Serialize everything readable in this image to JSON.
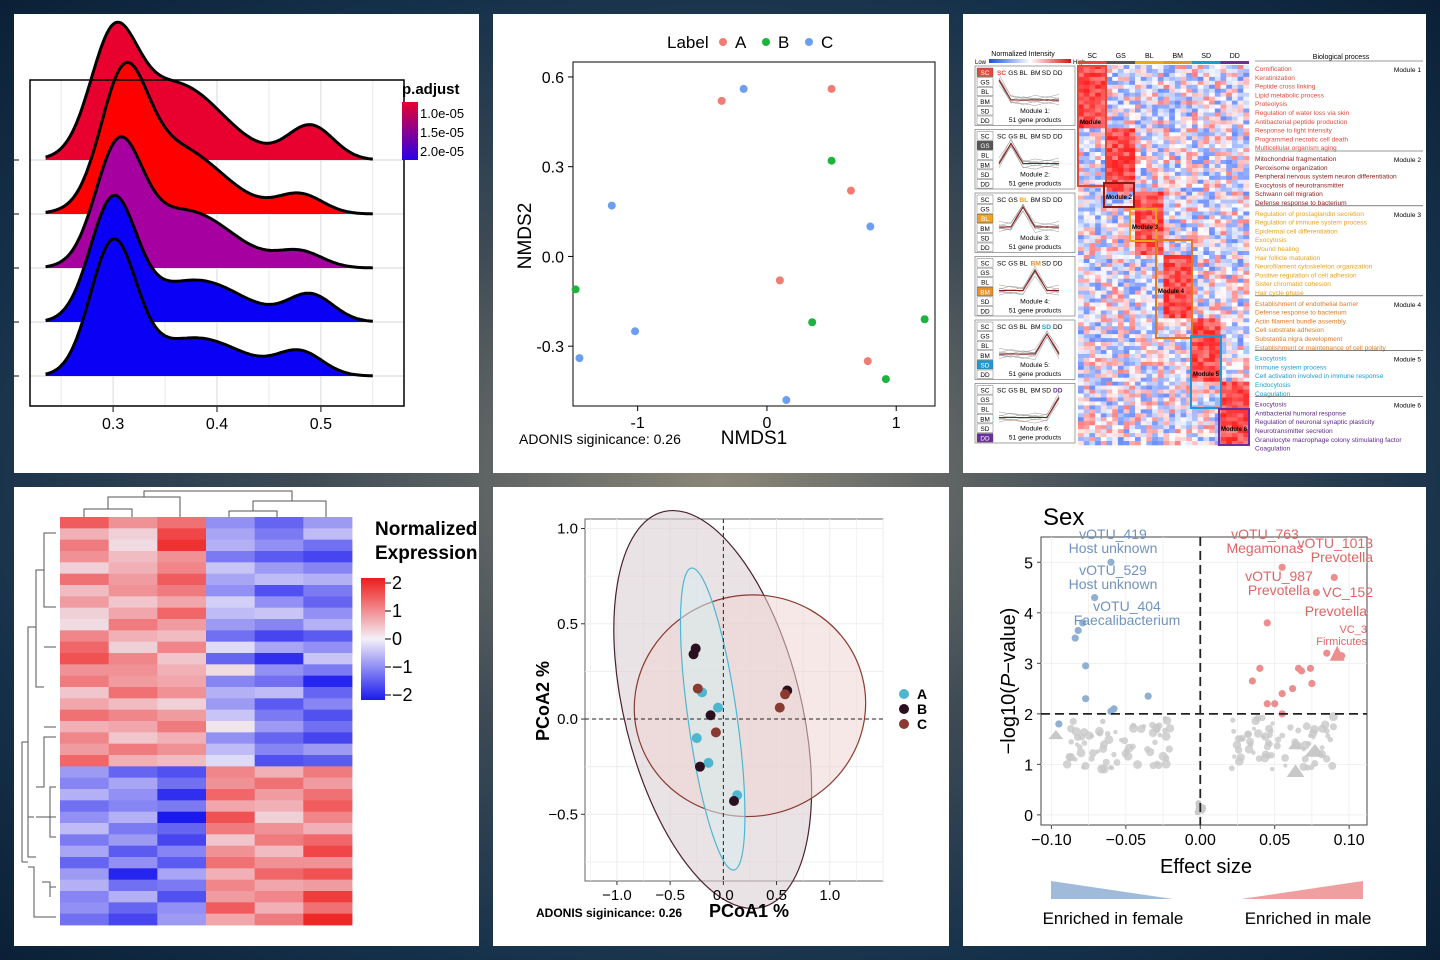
{
  "ridge": {
    "legend_title": "p.adjust",
    "legend_ticks": [
      "1.0e-05",
      "1.5e-05",
      "2.0e-05"
    ],
    "colors": [
      "#e8002e",
      "#ff0000",
      "#a600a0",
      "#0a00f5",
      "#0a00f5"
    ],
    "x_ticks": [
      "0.3",
      "0.4",
      "0.5"
    ]
  },
  "nmds": {
    "legend_title": "Label",
    "groups": [
      {
        "name": "A",
        "color": "#f07c74"
      },
      {
        "name": "B",
        "color": "#1db33c"
      },
      {
        "name": "C",
        "color": "#6c9ef0"
      }
    ],
    "xlabel": "NMDS1",
    "ylabel": "NMDS2",
    "x_ticks": [
      "-1",
      "0",
      "1"
    ],
    "y_ticks": [
      "0.6",
      "0.3",
      "0.0",
      "-0.3"
    ],
    "note": "ADONIS siginicance: 0.26"
  },
  "module_heatmap": {
    "legend_label": "Normalized Intensity",
    "legend_low": "Low",
    "legend_high": "High",
    "columns": [
      "SC",
      "GS",
      "BL",
      "BM",
      "SD",
      "DD"
    ],
    "column_colors": [
      "#e34a3d",
      "#555555",
      "#f0a41c",
      "#e8902a",
      "#1a9bd6",
      "#6a2ea0"
    ],
    "bp_header": "Biological process",
    "modules": [
      {
        "label": "Module 1",
        "name": "Module 1:",
        "count": "51 gene products",
        "color": "#e04a3a",
        "short": "Module",
        "terms": [
          "Cornification",
          "Keratinization",
          "Peptide cross linking",
          "Lipid metabolic process",
          "Proteolysis",
          "Regulation of water loss via skin",
          "Antibacterial peptide production",
          "Response to light intensity",
          "Programmed necrotic cell death",
          "Multicellular organism aging"
        ]
      },
      {
        "label": "Module 2",
        "name": "Module 2:",
        "count": "51 gene products",
        "color": "#8b1a1a",
        "short": "Module 2",
        "terms": [
          "Mitochondrial fragmentation",
          "Peroxisome organization",
          "Peripheral nervous system neuron differentiation",
          "Exocytosis of neurotransmitter",
          "Schwann cell migration",
          "Defense response to bacterium"
        ]
      },
      {
        "label": "Module 3",
        "name": "Module 3:",
        "count": "51 gene products",
        "color": "#e8a21c",
        "short": "Module 3",
        "terms": [
          "Regulation of prostaglandin secretion",
          "Regulation of immune system process",
          "Epidermal cell differentiation",
          "Exocytosis",
          "Wound healing",
          "Hair follicle maturation",
          "Neurofilament cytoskeleton organization",
          "Positive regulation of cell adhesion",
          "Sister chromatid cohesion",
          "Hair cycle phase"
        ]
      },
      {
        "label": "Module 4",
        "name": "Module 4:",
        "count": "51 gene products",
        "color": "#e07a22",
        "short": "Module 4",
        "terms": [
          "Establishment of endothelial barrier",
          "Defense response to bacterium",
          "Actin filament bundle assembly",
          "Cell substrate adhesion",
          "Substantia nigra development",
          "Establishment or maintenance of cell polarity"
        ]
      },
      {
        "label": "Module 5",
        "name": "Module 5:",
        "count": "51 gene products",
        "color": "#1a9bd6",
        "short": "Module 5",
        "terms": [
          "Exocytosis",
          "Immune system process",
          "Cell activation involved in immune response",
          "Endocytosis",
          "Coagulation"
        ]
      },
      {
        "label": "Module 6",
        "name": "Module 6:",
        "count": "51 gene products",
        "color": "#6a2ea0",
        "short": "Module 6",
        "terms": [
          "Exocytosis",
          "Antibacterial humoral response",
          "Regulation of neuronal synaptic plasticity",
          "Neurotransmitter secretion",
          "Granulocyte macrophage colony stimulating factor",
          "Coagulation"
        ]
      }
    ]
  },
  "expr_heatmap": {
    "legend_title_1": "Normalized",
    "legend_title_2": "Expression",
    "legend_ticks": [
      "2",
      "1",
      "0",
      "−1",
      "−2"
    ]
  },
  "pcoa": {
    "xlabel": "PCoA1 %",
    "ylabel": "PCoA2 %",
    "x_ticks": [
      "−1.0",
      "−0.5",
      "0.0",
      "0.5",
      "1.0"
    ],
    "y_ticks": [
      "1.0",
      "0.5",
      "0.0",
      "−0.5"
    ],
    "groups": [
      {
        "name": "A",
        "color": "#4fb6cf"
      },
      {
        "name": "B",
        "color": "#2a0f1e"
      },
      {
        "name": "C",
        "color": "#8a3a30"
      }
    ],
    "note": "ADONIS siginicance: 0.26"
  },
  "volcano": {
    "title": "Sex",
    "xlabel": "Effect size",
    "ylabel_pre": "−log10(",
    "ylabel_p": "P",
    "ylabel_post": "−value)",
    "x_ticks": [
      "−0.10",
      "−0.05",
      "0.00",
      "0.05",
      "0.10"
    ],
    "y_ticks": [
      "5",
      "4",
      "3",
      "2",
      "1",
      "0"
    ],
    "left_labels": [
      {
        "id": "vOTU_419",
        "taxon": "Host unknown"
      },
      {
        "id": "vOTU_529",
        "taxon": "Host unknown"
      },
      {
        "id": "vOTU_404",
        "taxon": "Faecalibacterium"
      }
    ],
    "right_labels": [
      {
        "id": "vOTU_763",
        "taxon": "Megamonas"
      },
      {
        "id": "vOTU_1013",
        "taxon": "Prevotella"
      },
      {
        "id": "vOTU_987",
        "taxon": "Prevotella"
      },
      {
        "id": "VC_152",
        "taxon": "Prevotella"
      },
      {
        "id": "VC_3",
        "taxon": "Firmicutes"
      }
    ],
    "female_label": "Enriched in female",
    "male_label": "Enriched in male",
    "female_color": "#8fafd3",
    "male_color": "#ec8e8e"
  },
  "chart_data": [
    {
      "type": "area",
      "title": "",
      "xlabel": "",
      "ylabel": "",
      "x_ticks": [
        0.3,
        0.4,
        0.5
      ],
      "xlim": [
        0.22,
        0.58
      ],
      "legend": {
        "title": "p.adjust",
        "ticks": [
          "1.0e-05",
          "1.5e-05",
          "2.0e-05"
        ],
        "placement": "right"
      },
      "series": [
        {
          "peaks": [
            [
              0.3,
              0.55
            ],
            [
              0.36,
              0.4
            ],
            [
              0.49,
              0.18
            ]
          ]
        },
        {
          "peaks": [
            [
              0.31,
              0.6
            ],
            [
              0.36,
              0.35
            ],
            [
              0.48,
              0.1
            ]
          ]
        },
        {
          "peaks": [
            [
              0.305,
              0.58
            ],
            [
              0.37,
              0.3
            ],
            [
              0.48,
              0.08
            ]
          ]
        },
        {
          "peaks": [
            [
              0.3,
              0.62
            ],
            [
              0.38,
              0.22
            ],
            [
              0.49,
              0.14
            ]
          ]
        },
        {
          "peaks": [
            [
              0.3,
              0.68
            ],
            [
              0.38,
              0.2
            ],
            [
              0.48,
              0.12
            ]
          ]
        }
      ]
    },
    {
      "type": "scatter",
      "xlabel": "NMDS1",
      "ylabel": "NMDS2",
      "xlim": [
        -1.5,
        1.3
      ],
      "ylim": [
        -0.5,
        0.65
      ],
      "series": [
        {
          "name": "A",
          "points": [
            [
              -0.35,
              0.52
            ],
            [
              0.5,
              0.56
            ],
            [
              0.65,
              0.22
            ],
            [
              0.1,
              -0.08
            ],
            [
              0.78,
              -0.35
            ]
          ]
        },
        {
          "name": "B",
          "points": [
            [
              0.5,
              0.32
            ],
            [
              -1.48,
              -0.11
            ],
            [
              0.35,
              -0.22
            ],
            [
              1.22,
              -0.21
            ],
            [
              0.92,
              -0.41
            ]
          ]
        },
        {
          "name": "C",
          "points": [
            [
              -0.18,
              0.56
            ],
            [
              -1.2,
              0.17
            ],
            [
              0.8,
              0.1
            ],
            [
              -1.02,
              -0.25
            ],
            [
              -1.45,
              -0.34
            ],
            [
              0.15,
              -0.48
            ]
          ]
        }
      ]
    },
    {
      "type": "heatmap",
      "title": "",
      "columns": [
        "SC",
        "GS",
        "BL",
        "BM",
        "SD",
        "DD"
      ],
      "modules": [
        "Module 1",
        "Module 2",
        "Module 3",
        "Module 4",
        "Module 5",
        "Module 6"
      ],
      "rows_per_module": 51
    },
    {
      "type": "heatmap",
      "legend": {
        "title": "Normalized Expression",
        "ticks": [
          2,
          1,
          0,
          -1,
          -2
        ]
      },
      "values": [
        [
          1.4,
          0.9,
          1.2,
          -0.9,
          -1.3,
          -0.8
        ],
        [
          0.6,
          0.3,
          1.6,
          -0.7,
          -1.1,
          -0.5
        ],
        [
          1.1,
          0.2,
          1.8,
          -0.6,
          -0.9,
          -1.2
        ],
        [
          0.9,
          0.5,
          0.9,
          -1.1,
          -1.4,
          -1.6
        ],
        [
          0.3,
          0.6,
          1.0,
          -0.4,
          -0.8,
          -1.0
        ],
        [
          1.2,
          0.8,
          1.4,
          -0.7,
          -0.5,
          -0.6
        ],
        [
          0.5,
          0.9,
          1.1,
          -0.9,
          -1.5,
          -1.1
        ],
        [
          0.8,
          0.4,
          0.7,
          -0.3,
          -0.9,
          -1.3
        ],
        [
          0.3,
          0.7,
          1.3,
          -0.5,
          -0.4,
          -0.9
        ],
        [
          0.2,
          1.1,
          0.8,
          -0.8,
          -1.0,
          -0.6
        ],
        [
          1.0,
          0.6,
          0.5,
          -1.2,
          -1.6,
          -1.4
        ],
        [
          1.3,
          0.3,
          1.0,
          -0.2,
          -0.7,
          -0.9
        ],
        [
          1.5,
          1.0,
          0.4,
          -1.3,
          -1.8,
          -0.4
        ],
        [
          0.9,
          0.9,
          0.6,
          0.2,
          -0.9,
          -1.1
        ],
        [
          1.1,
          0.8,
          0.7,
          -1.0,
          -1.2,
          -1.9
        ],
        [
          0.4,
          1.2,
          0.9,
          -0.6,
          -0.5,
          -1.3
        ],
        [
          0.7,
          0.5,
          0.3,
          -0.8,
          -1.4,
          -1.0
        ],
        [
          1.2,
          1.0,
          0.8,
          -0.4,
          -1.1,
          -1.5
        ],
        [
          0.6,
          0.7,
          1.1,
          0.1,
          -0.8,
          -1.2
        ],
        [
          1.0,
          0.4,
          0.6,
          -0.9,
          -1.3,
          -1.6
        ],
        [
          0.8,
          1.1,
          0.9,
          -0.5,
          -1.0,
          -0.8
        ],
        [
          1.3,
          0.6,
          0.5,
          -0.2,
          -1.5,
          -1.4
        ],
        [
          -0.8,
          -1.3,
          -1.5,
          1.0,
          0.6,
          1.1
        ],
        [
          -1.0,
          -0.7,
          -1.2,
          0.9,
          1.2,
          0.8
        ],
        [
          -0.6,
          -0.9,
          -1.8,
          1.3,
          0.8,
          1.2
        ],
        [
          -1.2,
          -1.0,
          -1.1,
          0.7,
          0.6,
          1.4
        ],
        [
          -0.9,
          -0.6,
          -2.0,
          1.5,
          0.3,
          1.0
        ],
        [
          -0.5,
          -1.1,
          -1.3,
          1.1,
          0.9,
          0.6
        ],
        [
          -1.1,
          -0.8,
          -1.6,
          0.4,
          1.1,
          1.3
        ],
        [
          -0.7,
          -1.4,
          -1.0,
          0.9,
          0.5,
          1.6
        ],
        [
          -1.3,
          -0.9,
          -1.4,
          1.2,
          0.9,
          0.9
        ],
        [
          -0.8,
          -1.9,
          -0.7,
          0.6,
          1.3,
          1.5
        ],
        [
          -0.6,
          -1.2,
          -1.1,
          1.0,
          0.7,
          0.8
        ],
        [
          -1.0,
          -0.6,
          -1.5,
          0.8,
          1.0,
          1.7
        ],
        [
          -0.9,
          -1.3,
          -0.9,
          1.4,
          0.6,
          1.2
        ],
        [
          -1.2,
          -1.6,
          -0.8,
          0.7,
          1.1,
          1.9
        ]
      ]
    },
    {
      "type": "scatter",
      "xlabel": "PCoA1 %",
      "ylabel": "PCoA2 %",
      "xlim": [
        -1.3,
        1.5
      ],
      "ylim": [
        -0.85,
        1.05
      ],
      "series": [
        {
          "name": "A",
          "points": [
            [
              -0.2,
              0.14
            ],
            [
              -0.05,
              0.06
            ],
            [
              -0.25,
              -0.1
            ],
            [
              -0.14,
              -0.23
            ],
            [
              0.13,
              -0.4
            ]
          ]
        },
        {
          "name": "B",
          "points": [
            [
              -0.26,
              0.37
            ],
            [
              -0.28,
              0.34
            ],
            [
              -0.12,
              0.02
            ],
            [
              -0.22,
              -0.25
            ],
            [
              0.1,
              -0.43
            ],
            [
              0.6,
              0.15
            ]
          ]
        },
        {
          "name": "C",
          "points": [
            [
              -0.24,
              0.16
            ],
            [
              -0.07,
              -0.07
            ],
            [
              0.58,
              0.13
            ],
            [
              0.53,
              0.06
            ]
          ]
        }
      ],
      "ellipses": [
        {
          "group": "A",
          "center": [
            -0.1,
            0.0
          ],
          "rx": 0.23,
          "ry": 0.8,
          "angle": -8
        },
        {
          "group": "B",
          "center": [
            -0.1,
            0.05
          ],
          "rx": 0.83,
          "ry": 1.07,
          "angle": -14
        },
        {
          "group": "C",
          "center": [
            0.25,
            0.07
          ],
          "rx": 1.09,
          "ry": 0.58,
          "angle": -14
        }
      ]
    },
    {
      "type": "scatter",
      "title": "Sex",
      "xlabel": "Effect size",
      "xlim": [
        -0.107,
        0.112
      ],
      "ylim": [
        -0.2,
        5.5
      ],
      "threshold_y": 2,
      "series": [
        {
          "name": "Enriched in female",
          "points": [
            [
              -0.06,
              5.0
            ],
            [
              -0.071,
              4.3
            ],
            [
              -0.079,
              3.8
            ],
            [
              -0.082,
              3.65
            ],
            [
              -0.084,
              3.5
            ],
            [
              -0.077,
              2.95
            ],
            [
              -0.077,
              2.3
            ],
            [
              -0.058,
              2.1
            ],
            [
              -0.06,
              2.05
            ],
            [
              -0.035,
              2.35
            ],
            [
              -0.095,
              1.8
            ]
          ]
        },
        {
          "name": "Enriched in male",
          "points": [
            [
              0.055,
              4.9
            ],
            [
              0.078,
              4.4
            ],
            [
              0.09,
              4.7
            ],
            [
              0.095,
              3.15
            ],
            [
              0.085,
              3.2
            ],
            [
              0.045,
              3.8
            ],
            [
              0.066,
              2.9
            ],
            [
              0.074,
              2.9
            ],
            [
              0.068,
              2.85
            ],
            [
              0.075,
              2.6
            ],
            [
              0.035,
              2.65
            ],
            [
              0.04,
              2.9
            ],
            [
              0.055,
              2.4
            ],
            [
              0.062,
              2.5
            ],
            [
              0.045,
              2.2
            ],
            [
              0.05,
              2.2
            ],
            [
              0.055,
              2.0
            ]
          ]
        }
      ]
    }
  ]
}
